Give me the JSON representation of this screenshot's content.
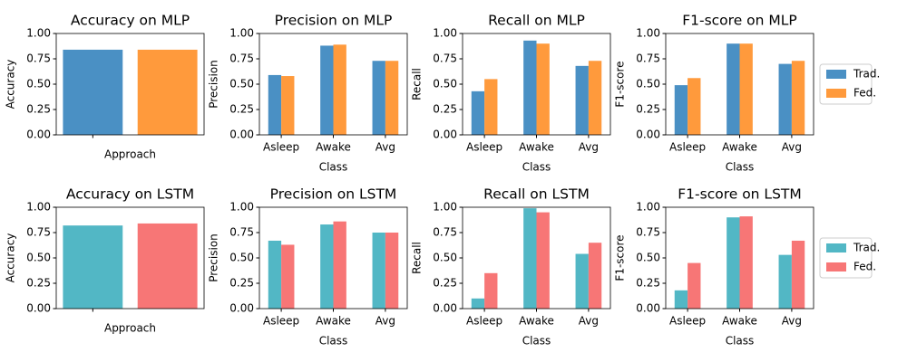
{
  "chart_data": [
    {
      "type": "bar",
      "title": "Accuracy on MLP",
      "xlabel": "Approach",
      "ylabel": "Accuracy",
      "categories": [
        null
      ],
      "series": [
        {
          "color": "#4a90c4",
          "values": [
            0.84
          ]
        },
        {
          "color": "#ff9a3c",
          "values": [
            0.84
          ]
        }
      ],
      "ylim": [
        0,
        1
      ],
      "yticks": [
        {
          "value": 0,
          "label": "0.00"
        },
        {
          "value": 0.25,
          "label": "0.25"
        },
        {
          "value": 0.5,
          "label": "0.50"
        },
        {
          "value": 0.75,
          "label": "0.75"
        },
        {
          "value": 1,
          "label": "1.00"
        }
      ]
    },
    {
      "type": "grouped_bar",
      "title": "Precision on MLP",
      "xlabel": "Class",
      "ylabel": "Precision",
      "categories": [
        "Asleep",
        "Awake",
        "Avg"
      ],
      "series": [
        {
          "color": "#4a90c4",
          "values": [
            0.59,
            0.88,
            0.73
          ]
        },
        {
          "color": "#ff9a3c",
          "values": [
            0.58,
            0.89,
            0.73
          ]
        }
      ],
      "ylim": [
        0,
        1
      ],
      "yticks": [
        {
          "value": 0,
          "label": "0.00"
        },
        {
          "value": 0.25,
          "label": "0.25"
        },
        {
          "value": 0.5,
          "label": "0.50"
        },
        {
          "value": 0.75,
          "label": "0.75"
        },
        {
          "value": 1,
          "label": "1.00"
        }
      ]
    },
    {
      "type": "grouped_bar",
      "title": "Recall on MLP",
      "xlabel": "Class",
      "ylabel": "Recall",
      "categories": [
        "Asleep",
        "Awake",
        "Avg"
      ],
      "series": [
        {
          "color": "#4a90c4",
          "values": [
            0.43,
            0.93,
            0.68
          ]
        },
        {
          "color": "#ff9a3c",
          "values": [
            0.55,
            0.9,
            0.73
          ]
        }
      ],
      "ylim": [
        0,
        1
      ],
      "yticks": [
        {
          "value": 0,
          "label": "0.00"
        },
        {
          "value": 0.25,
          "label": "0.25"
        },
        {
          "value": 0.5,
          "label": "0.50"
        },
        {
          "value": 0.75,
          "label": "0.75"
        },
        {
          "value": 1,
          "label": "1.00"
        }
      ]
    },
    {
      "type": "grouped_bar",
      "title": "F1-score on MLP",
      "xlabel": "Class",
      "ylabel": "F1-score",
      "categories": [
        "Asleep",
        "Awake",
        "Avg"
      ],
      "series": [
        {
          "name": "Trad.",
          "color": "#4a90c4",
          "values": [
            0.49,
            0.9,
            0.7
          ]
        },
        {
          "name": "Fed.",
          "color": "#ff9a3c",
          "values": [
            0.56,
            0.9,
            0.73
          ]
        }
      ],
      "ylim": [
        0,
        1
      ],
      "yticks": [
        {
          "value": 0,
          "label": "0.00"
        },
        {
          "value": 0.25,
          "label": "0.25"
        },
        {
          "value": 0.5,
          "label": "0.50"
        },
        {
          "value": 0.75,
          "label": "0.75"
        },
        {
          "value": 1,
          "label": "1.00"
        }
      ],
      "legend": "right"
    },
    {
      "type": "bar",
      "title": "Accuracy on LSTM",
      "xlabel": "Approach",
      "ylabel": "Accuracy",
      "categories": [
        null
      ],
      "series": [
        {
          "color": "#52b7c5",
          "values": [
            0.82
          ]
        },
        {
          "color": "#f77676",
          "values": [
            0.84
          ]
        }
      ],
      "ylim": [
        0,
        1
      ],
      "yticks": [
        {
          "value": 0,
          "label": "0.00"
        },
        {
          "value": 0.25,
          "label": "0.25"
        },
        {
          "value": 0.5,
          "label": "0.50"
        },
        {
          "value": 0.75,
          "label": "0.75"
        },
        {
          "value": 1,
          "label": "1.00"
        }
      ]
    },
    {
      "type": "grouped_bar",
      "title": "Precision on LSTM",
      "xlabel": "Class",
      "ylabel": "Precision",
      "categories": [
        "Asleep",
        "Awake",
        "Avg"
      ],
      "series": [
        {
          "color": "#52b7c5",
          "values": [
            0.67,
            0.83,
            0.75
          ]
        },
        {
          "color": "#f77676",
          "values": [
            0.63,
            0.86,
            0.75
          ]
        }
      ],
      "ylim": [
        0,
        1
      ],
      "yticks": [
        {
          "value": 0,
          "label": "0.00"
        },
        {
          "value": 0.25,
          "label": "0.25"
        },
        {
          "value": 0.5,
          "label": "0.50"
        },
        {
          "value": 0.75,
          "label": "0.75"
        },
        {
          "value": 1,
          "label": "1.00"
        }
      ]
    },
    {
      "type": "grouped_bar",
      "title": "Recall on LSTM",
      "xlabel": "Class",
      "ylabel": "Recall",
      "categories": [
        "Asleep",
        "Awake",
        "Avg"
      ],
      "series": [
        {
          "color": "#52b7c5",
          "values": [
            0.1,
            0.99,
            0.54
          ]
        },
        {
          "color": "#f77676",
          "values": [
            0.35,
            0.95,
            0.65
          ]
        }
      ],
      "ylim": [
        0,
        1
      ],
      "yticks": [
        {
          "value": 0,
          "label": "0.00"
        },
        {
          "value": 0.25,
          "label": "0.25"
        },
        {
          "value": 0.5,
          "label": "0.50"
        },
        {
          "value": 0.75,
          "label": "0.75"
        },
        {
          "value": 1,
          "label": "1.00"
        }
      ]
    },
    {
      "type": "grouped_bar",
      "title": "F1-score on LSTM",
      "xlabel": "Class",
      "ylabel": "F1-score",
      "categories": [
        "Asleep",
        "Awake",
        "Avg"
      ],
      "series": [
        {
          "name": "Trad.",
          "color": "#52b7c5",
          "values": [
            0.18,
            0.9,
            0.53
          ]
        },
        {
          "name": "Fed.",
          "color": "#f77676",
          "values": [
            0.45,
            0.91,
            0.67
          ]
        }
      ],
      "ylim": [
        0,
        1
      ],
      "yticks": [
        {
          "value": 0,
          "label": "0.00"
        },
        {
          "value": 0.25,
          "label": "0.25"
        },
        {
          "value": 0.5,
          "label": "0.50"
        },
        {
          "value": 0.75,
          "label": "0.75"
        },
        {
          "value": 1,
          "label": "1.00"
        }
      ],
      "legend": "right"
    }
  ]
}
